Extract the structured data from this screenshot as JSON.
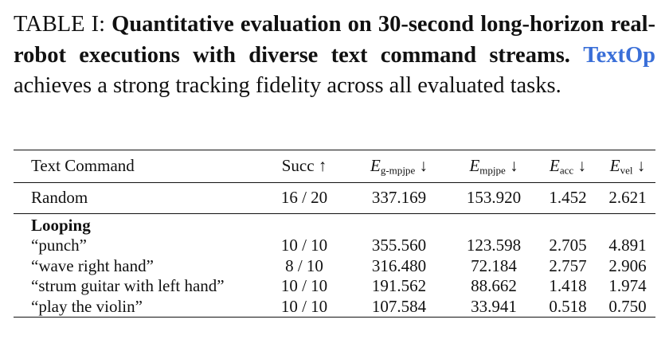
{
  "caption": {
    "label": "TABLE I: ",
    "bold": "Quantitative evaluation on 30-second long-horizon real-robot executions with diverse text command streams.",
    "brand": "TextOp",
    "rest": " achieves a strong tracking fidelity across all evaluated tasks."
  },
  "table": {
    "headers": {
      "text_command": "Text Command",
      "succ": "Succ ↑",
      "e_g_mpjpe": {
        "main": "E",
        "sub": "g-mpjpe",
        "arrow": " ↓"
      },
      "e_mpjpe": {
        "main": "E",
        "sub": "mpjpe",
        "arrow": " ↓"
      },
      "e_acc": {
        "main": "E",
        "sub": "acc",
        "arrow": " ↓"
      },
      "e_vel": {
        "main": "E",
        "sub": "vel",
        "arrow": " ↓"
      }
    },
    "random": {
      "command": "Random",
      "succ": "16 / 20",
      "e_g_mpjpe": "337.169",
      "e_mpjpe": "153.920",
      "e_acc": "1.452",
      "e_vel": "2.621"
    },
    "group_label": "Looping",
    "rows": [
      {
        "command": "“punch”",
        "succ": "10 / 10",
        "e_g_mpjpe": "355.560",
        "e_mpjpe": "123.598",
        "e_acc": "2.705",
        "e_vel": "4.891"
      },
      {
        "command": "“wave right hand”",
        "succ": "8 / 10",
        "e_g_mpjpe": "316.480",
        "e_mpjpe": "72.184",
        "e_acc": "2.757",
        "e_vel": "2.906"
      },
      {
        "command": "“strum guitar with left hand”",
        "succ": "10 / 10",
        "e_g_mpjpe": "191.562",
        "e_mpjpe": "88.662",
        "e_acc": "1.418",
        "e_vel": "1.974"
      },
      {
        "command": "“play the violin”",
        "succ": "10 / 10",
        "e_g_mpjpe": "107.584",
        "e_mpjpe": "33.941",
        "e_acc": "0.518",
        "e_vel": "0.750"
      }
    ]
  }
}
